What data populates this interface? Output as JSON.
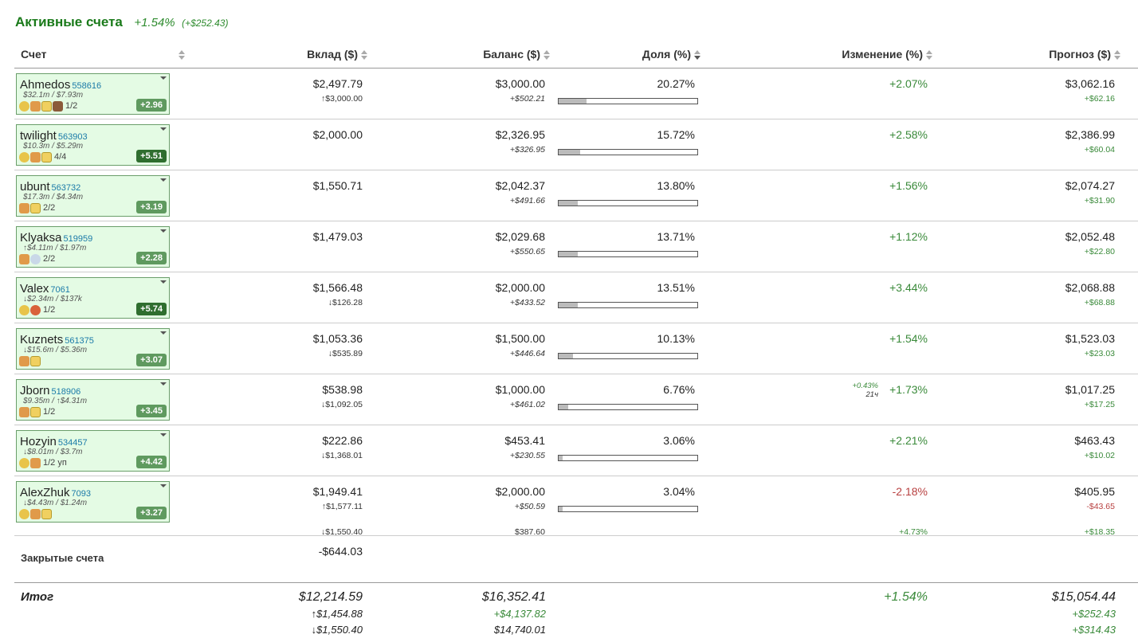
{
  "header": {
    "title": "Активные счета",
    "change_pct": "+1.54%",
    "change_usd": "(+$252.43)"
  },
  "columns": {
    "account": "Счет",
    "deposit": "Вклад ($)",
    "balance": "Баланс ($)",
    "share": "Доля (%)",
    "change": "Изменение (%)",
    "forecast": "Прогноз ($)"
  },
  "rows": [
    {
      "name": "Ahmedos",
      "id": "558616",
      "stats": "$32.1m / $7.93m",
      "icons": [
        "star-icon",
        "thumb-icon",
        "shield-icon",
        "eagle-icon"
      ],
      "frac": "1/2",
      "badge": "+2.96",
      "dark": false,
      "deposit": "$2,497.79",
      "deposit_sub": "↑$3,000.00",
      "balance": "$3,000.00",
      "balance_sub": "+$502.21",
      "share": "20.27%",
      "share_value": 20.27,
      "change": "+2.07%",
      "forecast": "$3,062.16",
      "forecast_sub": "+$62.16"
    },
    {
      "name": "twilight",
      "id": "563903",
      "stats": "$10.3m / $5.29m",
      "icons": [
        "star-icon",
        "thumb-icon",
        "shield-icon"
      ],
      "frac": "4/4",
      "badge": "+5.51",
      "dark": true,
      "deposit": "$2,000.00",
      "deposit_sub": "",
      "balance": "$2,326.95",
      "balance_sub": "+$326.95",
      "share": "15.72%",
      "share_value": 15.72,
      "change": "+2.58%",
      "forecast": "$2,386.99",
      "forecast_sub": "+$60.04"
    },
    {
      "name": "ubunt",
      "id": "563732",
      "stats": "$17.3m / $4.34m",
      "icons": [
        "thumb-icon",
        "shield-icon"
      ],
      "frac": "2/2",
      "badge": "+3.19",
      "dark": false,
      "deposit": "$1,550.71",
      "deposit_sub": "",
      "balance": "$2,042.37",
      "balance_sub": "+$491.66",
      "share": "13.80%",
      "share_value": 13.8,
      "change": "+1.56%",
      "forecast": "$2,074.27",
      "forecast_sub": "+$31.90"
    },
    {
      "name": "Klyaksa",
      "id": "519959",
      "stats": "↑$4.11m / $1.97m",
      "icons": [
        "thumb-icon",
        "cloud-icon"
      ],
      "frac": "2/2",
      "badge": "+2.28",
      "dark": false,
      "deposit": "$1,479.03",
      "deposit_sub": "",
      "balance": "$2,029.68",
      "balance_sub": "+$550.65",
      "share": "13.71%",
      "share_value": 13.71,
      "change": "+1.12%",
      "forecast": "$2,052.48",
      "forecast_sub": "+$22.80"
    },
    {
      "name": "Valex",
      "id": "7061",
      "stats": "↓$2.34m / $137k",
      "icons": [
        "star-icon",
        "bug-icon"
      ],
      "frac": "1/2",
      "badge": "+5.74",
      "dark": true,
      "deposit": "$1,566.48",
      "deposit_sub": "↓$126.28",
      "balance": "$2,000.00",
      "balance_sub": "+$433.52",
      "share": "13.51%",
      "share_value": 13.51,
      "change": "+3.44%",
      "forecast": "$2,068.88",
      "forecast_sub": "+$68.88"
    },
    {
      "name": "Kuznets",
      "id": "561375",
      "stats": "↓$15.6m / $5.36m",
      "icons": [
        "thumb-icon",
        "shield-icon"
      ],
      "frac": "",
      "badge": "+3.07",
      "dark": false,
      "deposit": "$1,053.36",
      "deposit_sub": "↓$535.89",
      "balance": "$1,500.00",
      "balance_sub": "+$446.64",
      "share": "10.13%",
      "share_value": 10.13,
      "change": "+1.54%",
      "forecast": "$1,523.03",
      "forecast_sub": "+$23.03"
    },
    {
      "name": "Jborn",
      "id": "518906",
      "stats": "$9.35m / ↑$4.31m",
      "icons": [
        "thumb-icon",
        "shield-icon"
      ],
      "frac": "1/2",
      "badge": "+3.45",
      "dark": false,
      "deposit": "$538.98",
      "deposit_sub": "↓$1,092.05",
      "balance": "$1,000.00",
      "balance_sub": "+$461.02",
      "share": "6.76%",
      "share_value": 6.76,
      "change": "+1.73%",
      "change_note": "+0.43%",
      "change_note2": "21ч",
      "forecast": "$1,017.25",
      "forecast_sub": "+$17.25"
    },
    {
      "name": "Hozyin",
      "id": "534457",
      "stats": "↓$8.01m / $3.7m",
      "icons": [
        "star-icon",
        "thumb-icon"
      ],
      "frac": "1/2 уп",
      "badge": "+4.42",
      "dark": false,
      "deposit": "$222.86",
      "deposit_sub": "↓$1,368.01",
      "balance": "$453.41",
      "balance_sub": "+$230.55",
      "share": "3.06%",
      "share_value": 3.06,
      "change": "+2.21%",
      "forecast": "$463.43",
      "forecast_sub": "+$10.02"
    },
    {
      "name": "AlexZhuk",
      "id": "7093",
      "stats": "↓$4.43m / $1.24m",
      "icons": [
        "star-icon",
        "thumb-icon",
        "shield-icon"
      ],
      "frac": "",
      "badge": "+3.27",
      "dark": false,
      "deposit": "$1,949.41",
      "deposit_sub": "↑$1,577.11",
      "deposit_sub2": "↓$1,550.40",
      "balance": "$2,000.00",
      "balance_sub": "+$50.59",
      "balance_sub2": "$387.60",
      "share": "3.04%",
      "share_value": 3.04,
      "change": "-2.18%",
      "change_sub2": "+4.73%",
      "forecast": "$405.95",
      "forecast_sub": "-$43.65",
      "forecast_sub2": "+$18.35"
    }
  ],
  "closed": {
    "label": "Закрытые счета",
    "deposit": "-$644.03"
  },
  "total": {
    "label": "Итог",
    "deposit": "$12,214.59",
    "deposit_sub": "↑$1,454.88",
    "deposit_sub2": "↓$1,550.40",
    "balance": "$16,352.41",
    "balance_sub": "+$4,137.82",
    "balance_sub2": "$14,740.01",
    "change": "+1.54%",
    "forecast": "$15,054.44",
    "forecast_sub": "+$252.43",
    "forecast_sub2": "+$314.43"
  }
}
